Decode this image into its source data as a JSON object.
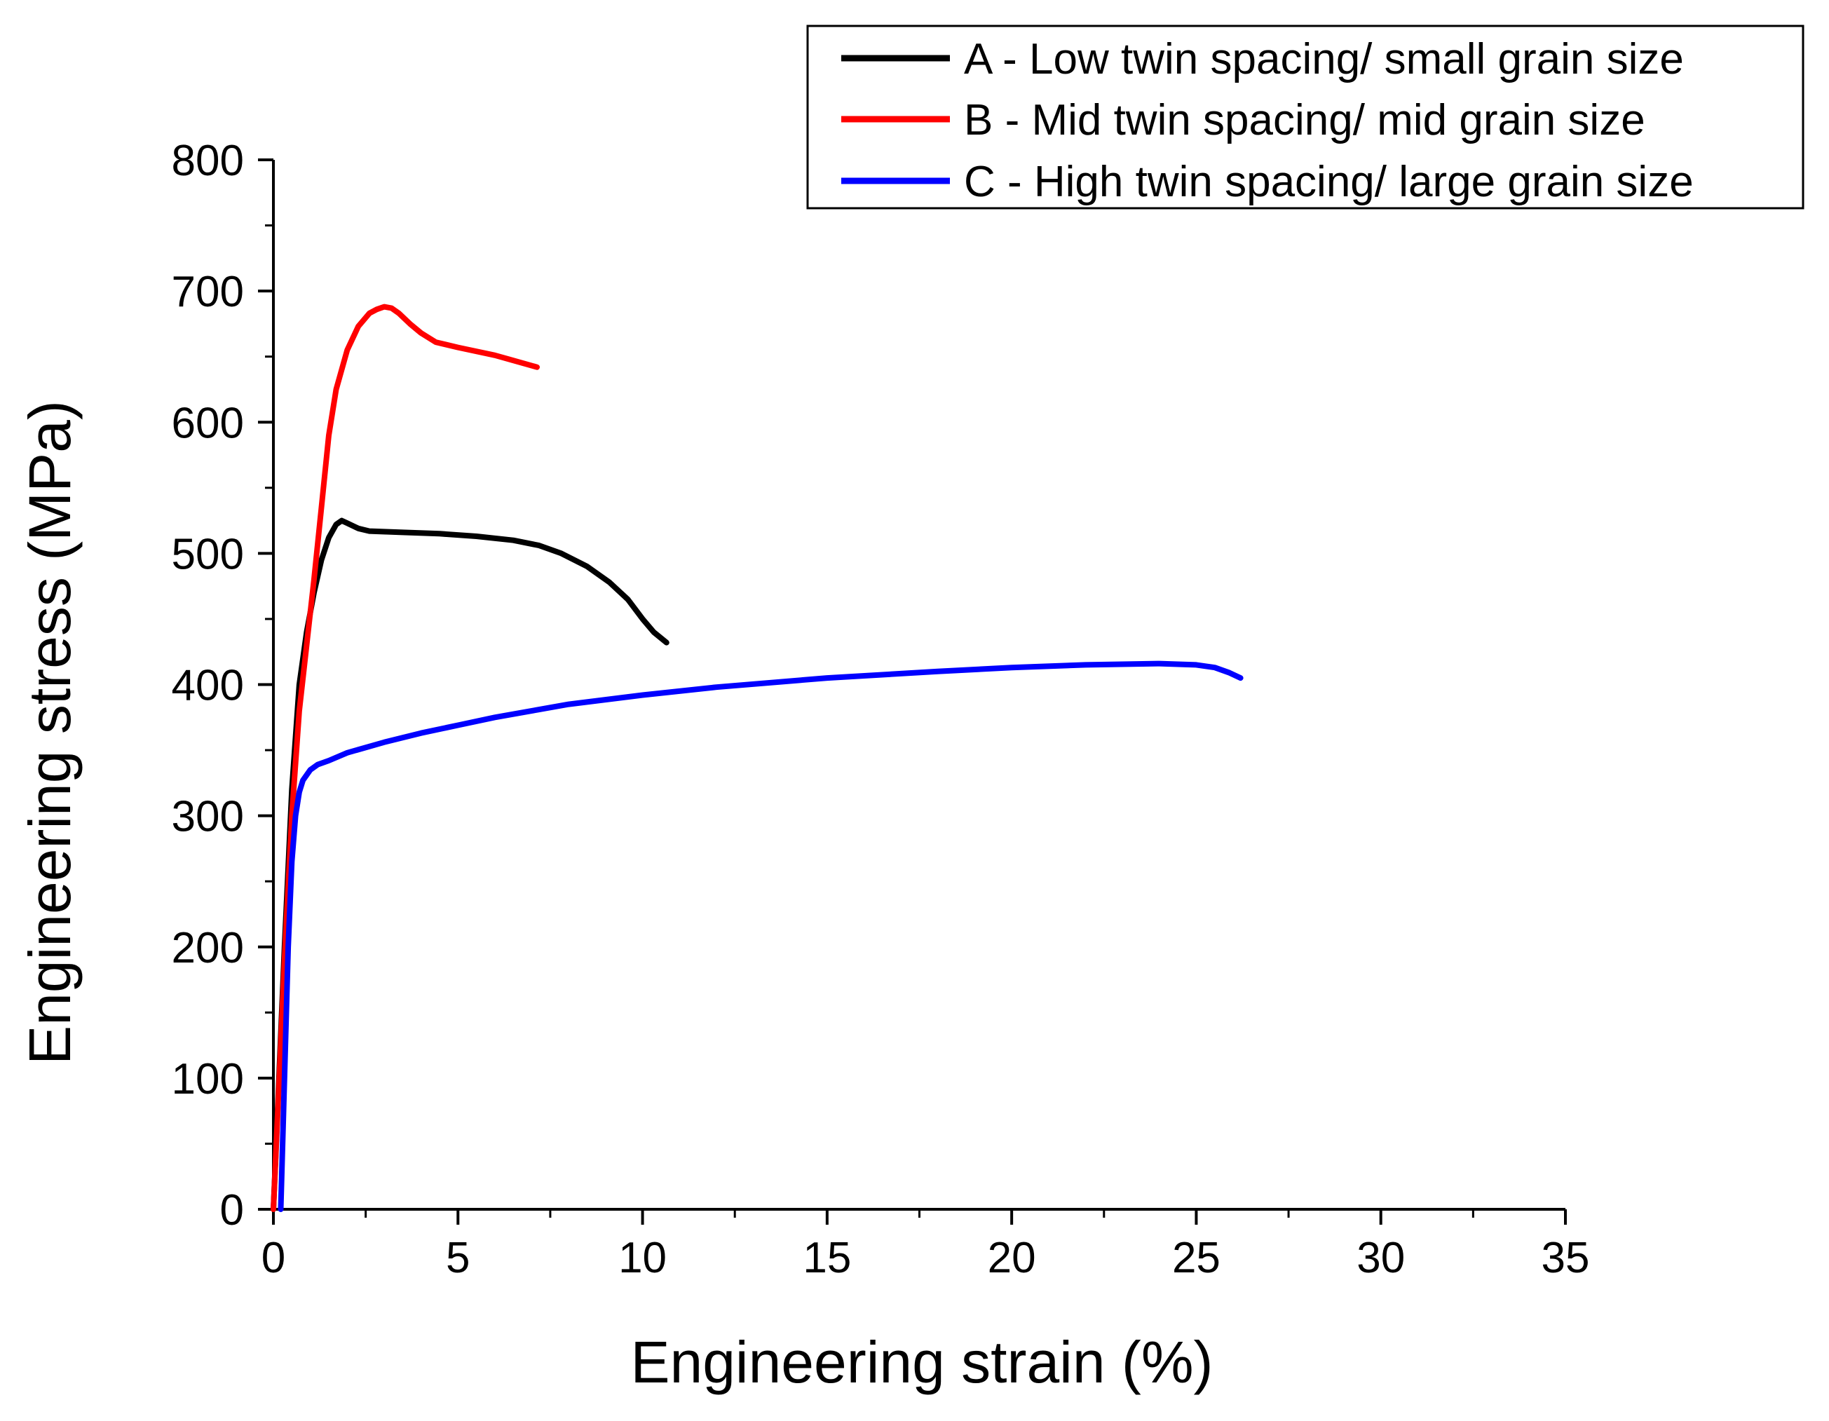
{
  "chart_data": {
    "type": "line",
    "title": "",
    "xlabel": "Engineering strain (%)",
    "ylabel": "Engineering stress (MPa)",
    "xlim": [
      0,
      35
    ],
    "ylim": [
      0,
      800
    ],
    "xticks": [
      0,
      5,
      10,
      15,
      20,
      25,
      30,
      35
    ],
    "yticks": [
      0,
      100,
      200,
      300,
      400,
      500,
      600,
      700,
      800
    ],
    "xtick_labels": [
      "0",
      "5",
      "10",
      "15",
      "20",
      "25",
      "30",
      "35"
    ],
    "ytick_labels": [
      "0",
      "100",
      "200",
      "300",
      "400",
      "500",
      "600",
      "700",
      "800"
    ],
    "grid": false,
    "legend_position": "top-right",
    "series": [
      {
        "name": "A - Low twin spacing/ small grain size",
        "color": "#000000",
        "x": [
          0,
          0.3,
          0.5,
          0.7,
          0.9,
          1.1,
          1.3,
          1.5,
          1.7,
          1.85,
          2.0,
          2.3,
          2.6,
          3.5,
          4.5,
          5.5,
          6.5,
          7.2,
          7.8,
          8.5,
          9.1,
          9.6,
          10.0,
          10.3,
          10.65
        ],
        "y": [
          0,
          200,
          320,
          400,
          440,
          470,
          495,
          512,
          522,
          525,
          523,
          519,
          517,
          516,
          515,
          513,
          510,
          506,
          500,
          490,
          478,
          465,
          450,
          440,
          432
        ]
      },
      {
        "name": "B - Mid twin spacing/ mid grain size",
        "color": "#ff0000",
        "x": [
          0,
          0.3,
          0.5,
          0.7,
          0.9,
          1.1,
          1.3,
          1.5,
          1.7,
          2.0,
          2.3,
          2.6,
          2.8,
          3.0,
          3.2,
          3.4,
          3.7,
          4.0,
          4.4,
          5.0,
          6.0,
          7.14
        ],
        "y": [
          0,
          190,
          300,
          380,
          430,
          480,
          535,
          590,
          625,
          655,
          673,
          683,
          686,
          688,
          687,
          683,
          675,
          668,
          661,
          657,
          651,
          642
        ]
      },
      {
        "name": "C - High twin spacing/ large grain size",
        "color": "#0000ff",
        "x": [
          0.2,
          0.3,
          0.4,
          0.5,
          0.6,
          0.7,
          0.8,
          1.0,
          1.2,
          1.5,
          2.0,
          3.0,
          4.0,
          5.0,
          6.0,
          8.0,
          10.0,
          12.0,
          15.0,
          18.0,
          20.0,
          22.0,
          24.0,
          25.0,
          25.5,
          25.9,
          26.2
        ],
        "y": [
          0,
          100,
          200,
          265,
          300,
          318,
          327,
          335,
          339,
          342,
          348,
          356,
          363,
          369,
          375,
          385,
          392,
          398,
          405,
          410,
          413,
          415,
          416,
          415,
          413,
          409,
          405
        ]
      }
    ]
  }
}
